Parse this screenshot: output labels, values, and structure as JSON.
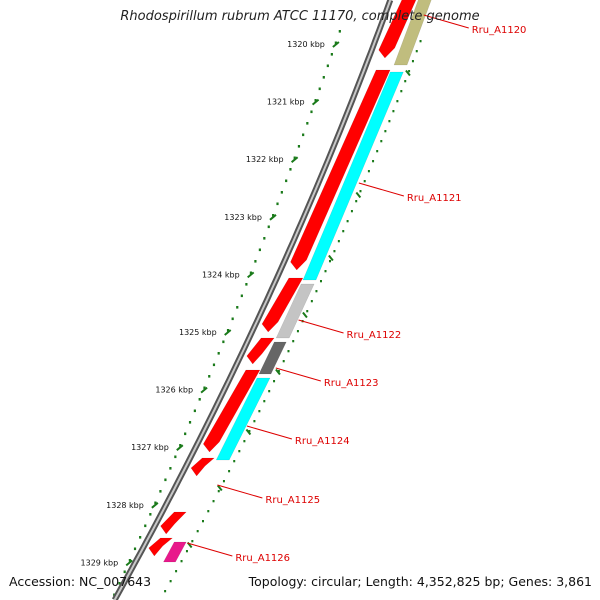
{
  "title": "Rhodospirillum rubrum ATCC 11170, complete genome",
  "footer": {
    "accession": "Accession: NC_007643",
    "topology": "Topology: circular; Length: 4,352,825 bp; Genes: 3,861"
  },
  "scale": {
    "ticks": [
      "1320 kbp",
      "1321 kbp",
      "1322 kbp",
      "1323 kbp",
      "1324 kbp",
      "1325 kbp",
      "1326 kbp",
      "1327 kbp",
      "1328 kbp",
      "1329 kbp"
    ]
  },
  "colors": {
    "forward_cds": "#ff0000",
    "reverse_cds": "#00ffff",
    "label": "#dd0000",
    "scale": "#1a7a1a",
    "backbone": "#777777"
  },
  "gene_labels": [
    "Rru_A1120",
    "Rru_A1121",
    "Rru_A1122",
    "Rru_A1123",
    "Rru_A1124",
    "Rru_A1125",
    "Rru_A1126"
  ]
}
